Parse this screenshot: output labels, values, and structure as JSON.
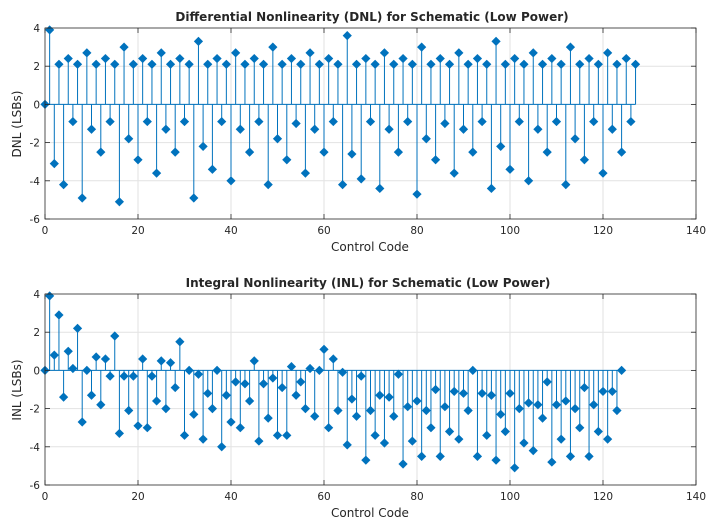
{
  "chart_data": [
    {
      "type": "stem",
      "title": "Differential Nonlinearity (DNL) for Schematic (Low Power)",
      "xlabel": "Control Code",
      "ylabel": "DNL (LSBs)",
      "xlim": [
        0,
        140
      ],
      "ylim": [
        -6,
        4
      ],
      "xticks": [
        0,
        20,
        40,
        60,
        80,
        100,
        120,
        140
      ],
      "yticks": [
        -6,
        -4,
        -2,
        0,
        2,
        4
      ],
      "grid": true,
      "color": "#0072BD",
      "x_start": 0,
      "values": [
        0,
        3.9,
        -3.1,
        2.1,
        -4.2,
        2.4,
        -0.9,
        2.1,
        -4.9,
        2.7,
        -1.3,
        2.1,
        -2.5,
        2.4,
        -0.9,
        2.1,
        -5.1,
        3.0,
        -1.8,
        2.1,
        -2.9,
        2.4,
        -0.9,
        2.1,
        -3.6,
        2.7,
        -1.3,
        2.1,
        -2.5,
        2.4,
        -0.9,
        2.1,
        -4.9,
        3.3,
        -2.2,
        2.1,
        -3.4,
        2.4,
        -0.9,
        2.1,
        -4.0,
        2.7,
        -1.3,
        2.1,
        -2.5,
        2.4,
        -0.9,
        2.1,
        -4.2,
        3.0,
        -1.8,
        2.1,
        -2.9,
        2.4,
        -1.0,
        2.1,
        -3.6,
        2.7,
        -1.3,
        2.1,
        -2.5,
        2.4,
        -0.9,
        2.1,
        -4.2,
        3.6,
        -2.6,
        2.1,
        -3.9,
        2.4,
        -0.9,
        2.1,
        -4.4,
        2.7,
        -1.3,
        2.1,
        -2.5,
        2.4,
        -0.9,
        2.1,
        -4.7,
        3.0,
        -1.8,
        2.1,
        -2.9,
        2.4,
        -1.0,
        2.1,
        -3.6,
        2.7,
        -1.3,
        2.1,
        -2.5,
        2.4,
        -0.9,
        2.1,
        -4.4,
        3.3,
        -2.2,
        2.1,
        -3.4,
        2.4,
        -0.9,
        2.1,
        -4.0,
        2.7,
        -1.3,
        2.1,
        -2.5,
        2.4,
        -0.9,
        2.1,
        -4.2,
        3.0,
        -1.8,
        2.1,
        -2.9,
        2.4,
        -0.9,
        2.1,
        -3.6,
        2.7,
        -1.3,
        2.1,
        -2.5,
        2.4,
        -0.9,
        2.1
      ]
    },
    {
      "type": "stem",
      "title": "Integral Nonlinearity (INL) for Schematic (Low Power)",
      "xlabel": "Control Code",
      "ylabel": "INL (LSBs)",
      "xlim": [
        0,
        140
      ],
      "ylim": [
        -6,
        4
      ],
      "xticks": [
        0,
        20,
        40,
        60,
        80,
        100,
        120,
        140
      ],
      "yticks": [
        -6,
        -4,
        -2,
        0,
        2,
        4
      ],
      "grid": true,
      "color": "#0072BD",
      "x_start": 0,
      "values": [
        0,
        3.9,
        0.8,
        2.9,
        -1.4,
        1.0,
        0.1,
        2.2,
        -2.7,
        0.0,
        -1.3,
        0.7,
        -1.8,
        0.6,
        -0.3,
        1.8,
        -3.3,
        -0.3,
        -2.1,
        -0.3,
        -2.9,
        0.6,
        -3.0,
        -0.3,
        -1.6,
        0.5,
        -2.0,
        0.4,
        -0.9,
        1.5,
        -3.4,
        0.0,
        -2.3,
        -0.2,
        -3.6,
        -1.2,
        -2.0,
        0.0,
        -4.0,
        -1.3,
        -2.7,
        -0.6,
        -3.0,
        -0.7,
        -1.6,
        0.5,
        -3.7,
        -0.7,
        -2.5,
        -0.4,
        -3.4,
        -0.9,
        -3.4,
        0.2,
        -1.3,
        -0.6,
        -2.0,
        0.1,
        -2.4,
        0.0,
        1.1,
        -3.0,
        0.6,
        -2.1,
        -0.1,
        -3.9,
        -1.5,
        -2.4,
        -0.3,
        -4.7,
        -2.1,
        -3.4,
        -1.3,
        -3.8,
        -1.4,
        -2.4,
        -0.2,
        -4.9,
        -1.9,
        -3.7,
        -1.6,
        -4.5,
        -2.1,
        -3.0,
        -1.0,
        -4.5,
        -1.9,
        -3.2,
        -1.1,
        -3.6,
        -1.2,
        -2.1,
        0.0,
        -4.5,
        -1.2,
        -3.4,
        -1.3,
        -4.7,
        -2.3,
        -3.2,
        -1.2,
        -5.1,
        -2.0,
        -3.8,
        -1.7,
        -4.2,
        -1.8,
        -2.5,
        -0.6,
        -4.8,
        -1.8,
        -3.6,
        -1.6,
        -4.5,
        -2.0,
        -3.0,
        -0.9,
        -4.5,
        -1.8,
        -3.2,
        -1.1,
        -3.6,
        -1.1,
        -2.1,
        0.0
      ]
    }
  ]
}
